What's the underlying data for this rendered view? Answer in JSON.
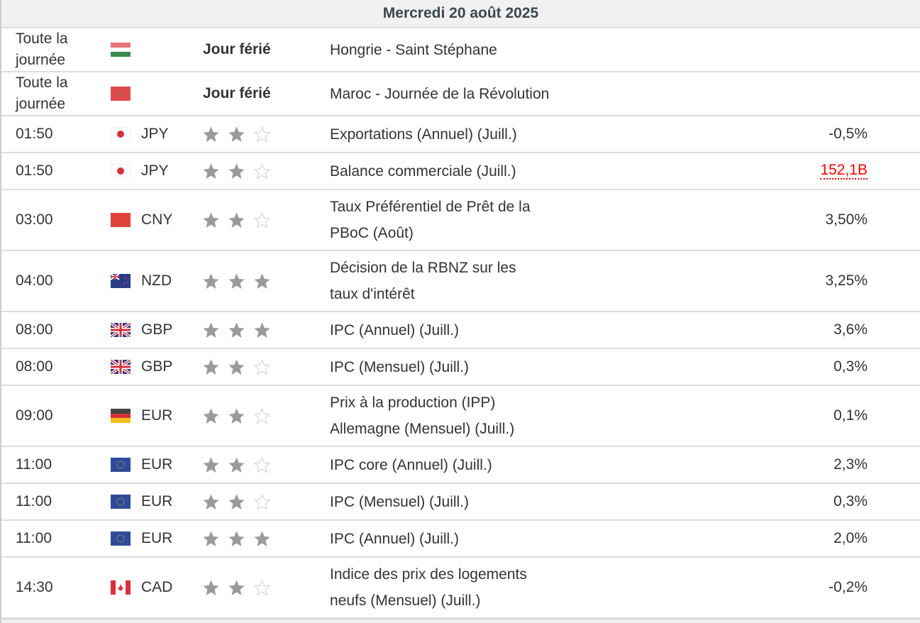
{
  "header": {
    "date": "Mercredi 20 août 2025"
  },
  "colors": {
    "star_filled": "#9a9a9a",
    "star_empty": "#d8d8d8",
    "highlight_value": "#ff0000",
    "header_bg": "#f1f1f1"
  },
  "rows": [
    {
      "time": "Toute la\njournée",
      "flag": "hungary-flag-icon",
      "currency": "",
      "holiday": "Jour férié",
      "event": "Hongrie - Saint Stéphane",
      "value": ""
    },
    {
      "time": "Toute la\njournée",
      "flag": "morocco-flag-icon",
      "currency": "",
      "holiday": "Jour férié",
      "event": "Maroc - Journée de la Révolution",
      "value": ""
    },
    {
      "time": "01:50",
      "flag": "japan-flag-icon",
      "currency": "JPY",
      "stars": 2,
      "event": "Exportations (Annuel) (Juill.)",
      "value": "-0,5%"
    },
    {
      "time": "01:50",
      "flag": "japan-flag-icon",
      "currency": "JPY",
      "stars": 2,
      "event": "Balance commerciale (Juill.)",
      "value": "152,1B",
      "value_highlight": true
    },
    {
      "time": "03:00",
      "flag": "china-flag-icon",
      "currency": "CNY",
      "stars": 2,
      "event": "Taux Préférentiel de Prêt de la\nPBoC (Août)",
      "value": "3,50%"
    },
    {
      "time": "04:00",
      "flag": "new-zealand-flag-icon",
      "currency": "NZD",
      "stars": 3,
      "event": "Décision de la RBNZ sur les\ntaux d'intérêt",
      "value": "3,25%"
    },
    {
      "time": "08:00",
      "flag": "uk-flag-icon",
      "currency": "GBP",
      "stars": 3,
      "event": "IPC (Annuel) (Juill.)",
      "value": "3,6%"
    },
    {
      "time": "08:00",
      "flag": "uk-flag-icon",
      "currency": "GBP",
      "stars": 2,
      "event": "IPC (Mensuel) (Juill.)",
      "value": "0,3%"
    },
    {
      "time": "09:00",
      "flag": "germany-flag-icon",
      "currency": "EUR",
      "stars": 2,
      "event": "Prix à la production (IPP)\nAllemagne (Mensuel) (Juill.)",
      "value": "0,1%"
    },
    {
      "time": "11:00",
      "flag": "eu-flag-icon",
      "currency": "EUR",
      "stars": 2,
      "event": "IPC core (Annuel) (Juill.)",
      "value": "2,3%"
    },
    {
      "time": "11:00",
      "flag": "eu-flag-icon",
      "currency": "EUR",
      "stars": 2,
      "event": "IPC (Mensuel) (Juill.)",
      "value": "0,3%"
    },
    {
      "time": "11:00",
      "flag": "eu-flag-icon",
      "currency": "EUR",
      "stars": 3,
      "event": "IPC (Annuel) (Juill.)",
      "value": "2,0%"
    },
    {
      "time": "14:30",
      "flag": "canada-flag-icon",
      "currency": "CAD",
      "stars": 2,
      "event": "Indice des prix des logements\nneufs (Mensuel) (Juill.)",
      "value": "-0,2%"
    }
  ]
}
